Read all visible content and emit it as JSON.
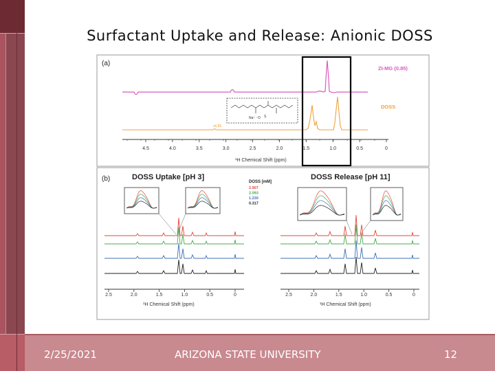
{
  "slide": {
    "title": "Surfactant Uptake and Release: Anionic DOSS",
    "footer_date": "2/25/2021",
    "footer_org": "ARIZONA STATE UNIVERSITY",
    "footer_page": "12"
  },
  "figure": {
    "panel_a": {
      "label": "(a)",
      "series_top": "ZI-MG (0.85)",
      "series_bottom": "DOSS",
      "ticks": [
        "4.5",
        "4.0",
        "3.5",
        "3.0",
        "2.5",
        "2.0",
        "1.5",
        "1.0",
        "0.5",
        "0"
      ],
      "xlabel": "¹H Chemical Shift (ppm)",
      "annot": "x6.85",
      "struct_na": "Na⁺ ⁻O",
      "struct_s": "S"
    },
    "panel_b": {
      "label": "(b)",
      "uptake_title": "DOSS Uptake [pH 3]",
      "release_title": "DOSS Release [pH 11]",
      "legend_title": "DOSS [mM]",
      "legend": [
        {
          "label": "2.907",
          "color": "#e3473b"
        },
        {
          "label": "2.093",
          "color": "#4aa84e"
        },
        {
          "label": "1.230",
          "color": "#3d6fb4"
        },
        {
          "label": "0.317",
          "color": "#222222"
        }
      ],
      "ticks": [
        "2.5",
        "2.0",
        "1.5",
        "1.0",
        "0.5",
        "0"
      ],
      "xlabel_left": "¹H Chemical Shift (ppm)",
      "xlabel_right": "¹H Chemical Shift (ppm)"
    },
    "colors": {
      "pink": "#d85ac0",
      "orange": "#f0a23c",
      "red": "#e3473b",
      "green": "#4aa84e",
      "blue": "#3d6fb4",
      "black": "#222222"
    }
  }
}
